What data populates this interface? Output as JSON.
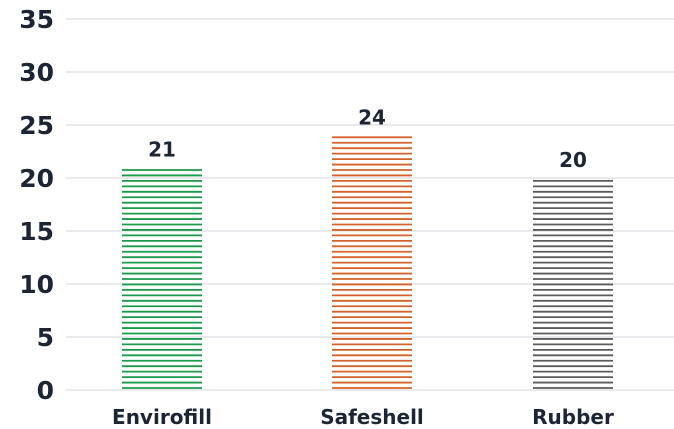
{
  "chart_data": {
    "type": "bar",
    "title": "",
    "xlabel": "",
    "ylabel": "",
    "categories": [
      "Envirofill",
      "Safeshell",
      "Rubber"
    ],
    "values": [
      21,
      24,
      20
    ],
    "data_labels": [
      "21",
      "24",
      "20"
    ],
    "ylim": [
      0,
      35
    ],
    "yticks": [
      "0",
      "5",
      "10",
      "15",
      "20",
      "25",
      "30",
      "35"
    ],
    "grid": true,
    "legend": "none",
    "bar_style": "horizontal-hatched",
    "colors": [
      "#1a9a4a",
      "#d4622b",
      "#5b5b5b"
    ]
  }
}
